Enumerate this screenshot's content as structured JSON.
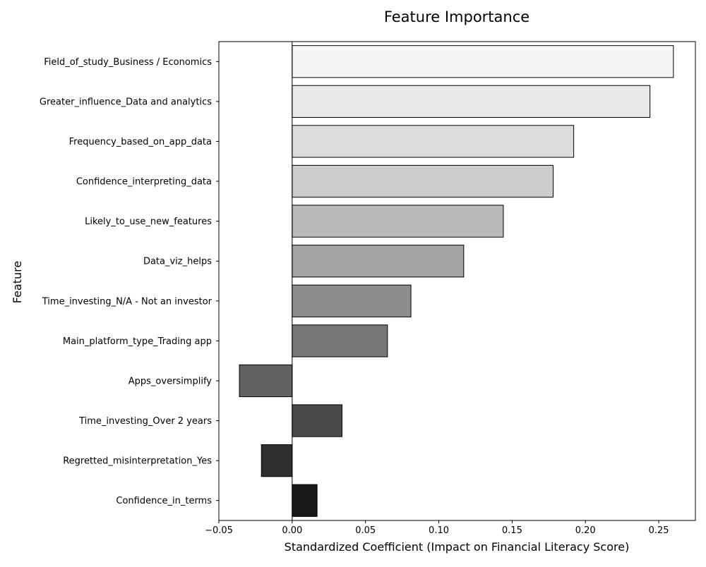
{
  "chart_data": {
    "type": "bar",
    "orientation": "horizontal",
    "title": "Feature Importance",
    "xlabel": "Standardized Coefficient (Impact on Financial Literacy Score)",
    "ylabel": "Feature",
    "xlim": [
      -0.05,
      0.275
    ],
    "x_ticks": [
      -0.05,
      0.0,
      0.05,
      0.1,
      0.15,
      0.2,
      0.25
    ],
    "x_tick_labels": [
      "−0.05",
      "0.00",
      "0.05",
      "0.10",
      "0.15",
      "0.20",
      "0.25"
    ],
    "grid": false,
    "legend": "none",
    "categories": [
      "Field_of_study_Business / Economics",
      "Greater_influence_Data and analytics",
      "Frequency_based_on_app_data",
      "Confidence_interpreting_data",
      "Likely_to_use_new_features",
      "Data_viz_helps",
      "Time_investing_N/A - Not an investor",
      "Main_platform_type_Trading app",
      "Apps_oversimplify",
      "Time_investing_Over 2 years",
      "Regretted_misinterpretation_Yes",
      "Confidence_in_terms"
    ],
    "values": [
      0.26,
      0.244,
      0.192,
      0.178,
      0.144,
      0.117,
      0.081,
      0.065,
      -0.036,
      0.034,
      -0.021,
      0.017
    ],
    "bar_colors": [
      "#f5f5f5",
      "#e9e9e9",
      "#dcdcdc",
      "#cccccc",
      "#b9b9b9",
      "#a3a3a3",
      "#8d8d8d",
      "#767676",
      "#616161",
      "#4a4a4a",
      "#2f2f2f",
      "#181818"
    ],
    "zero_line": true
  }
}
